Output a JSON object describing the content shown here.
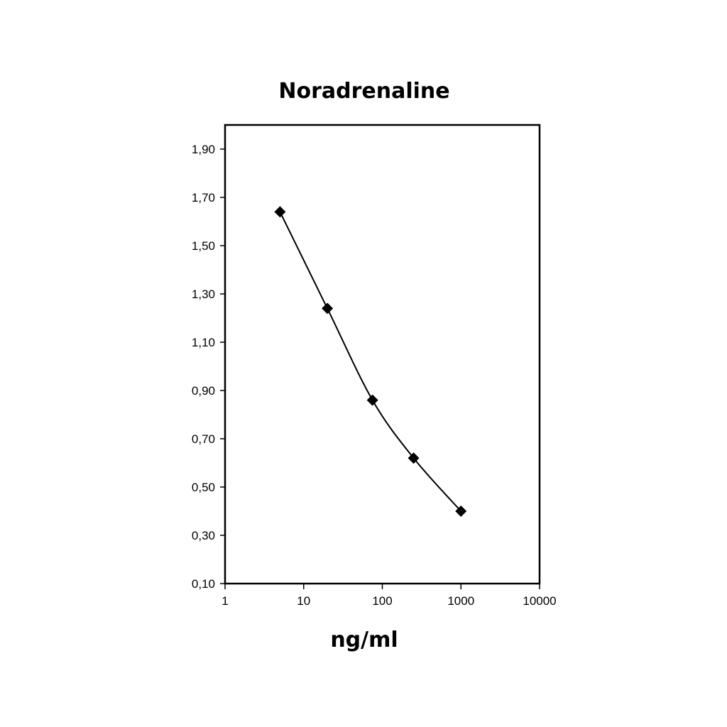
{
  "chart_data": {
    "type": "line",
    "title": "Noradrenaline",
    "xlabel": "ng/ml",
    "ylabel": "",
    "x_scale": "log",
    "xlim": [
      1,
      10000
    ],
    "ylim": [
      0.1,
      2.0
    ],
    "x_ticks": [
      {
        "value": 1,
        "label": "1"
      },
      {
        "value": 10,
        "label": "10"
      },
      {
        "value": 100,
        "label": "100"
      },
      {
        "value": 1000,
        "label": "1000"
      },
      {
        "value": 10000,
        "label": "10000"
      }
    ],
    "y_ticks": [
      {
        "value": 0.1,
        "label": "0,10"
      },
      {
        "value": 0.3,
        "label": "0,30"
      },
      {
        "value": 0.5,
        "label": "0,50"
      },
      {
        "value": 0.7,
        "label": "0,70"
      },
      {
        "value": 0.9,
        "label": "0,90"
      },
      {
        "value": 1.1,
        "label": "1,10"
      },
      {
        "value": 1.3,
        "label": "1,30"
      },
      {
        "value": 1.5,
        "label": "1,50"
      },
      {
        "value": 1.7,
        "label": "1,70"
      },
      {
        "value": 1.9,
        "label": "1,90"
      }
    ],
    "grid": false,
    "series": [
      {
        "marker": "diamond",
        "color": "#000000",
        "smooth": true,
        "points": [
          {
            "x": 5,
            "y": 1.64
          },
          {
            "x": 20,
            "y": 1.24
          },
          {
            "x": 75,
            "y": 0.86
          },
          {
            "x": 250,
            "y": 0.62
          },
          {
            "x": 1000,
            "y": 0.4
          }
        ]
      }
    ]
  }
}
